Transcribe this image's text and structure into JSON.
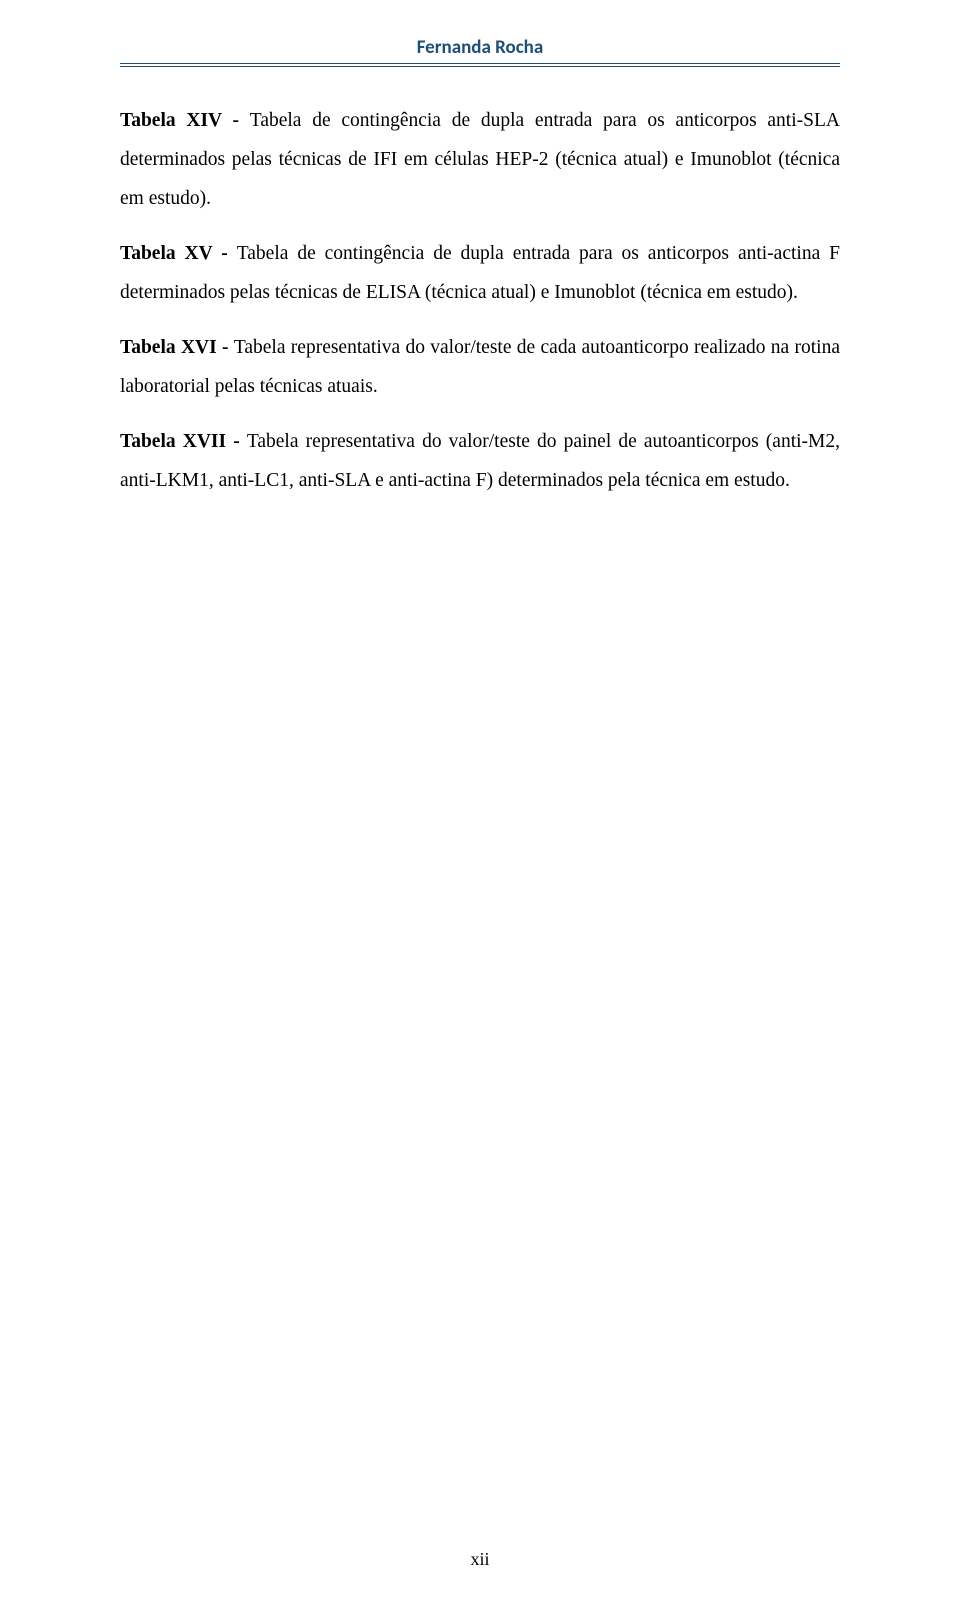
{
  "header": {
    "author_name": "Fernanda Rocha",
    "rule_color": "#1f4e79"
  },
  "paragraphs": [
    {
      "lead": "Tabela XIV",
      "separator": " - ",
      "body": "Tabela de contingência de dupla entrada para os anticorpos anti-SLA determinados pelas técnicas de IFI em células HEP-2 (técnica atual) e Imunoblot (técnica em estudo)."
    },
    {
      "lead": "Tabela XV",
      "separator": " - ",
      "body": "Tabela de contingência de dupla entrada para os anticorpos anti-actina F determinados pelas técnicas de ELISA (técnica atual) e Imunoblot (técnica em estudo)."
    },
    {
      "lead": "Tabela XVI",
      "separator": " - ",
      "body": "Tabela representativa do valor/teste de cada autoanticorpo realizado na rotina laboratorial pelas técnicas atuais."
    },
    {
      "lead": "Tabela XVII",
      "separator": " - ",
      "body": "Tabela representativa do valor/teste do painel de autoanticorpos (anti-M2, anti-LKM1, anti-LC1, anti-SLA e anti-actina F) determinados pela técnica em estudo."
    }
  ],
  "page_number": "xii"
}
